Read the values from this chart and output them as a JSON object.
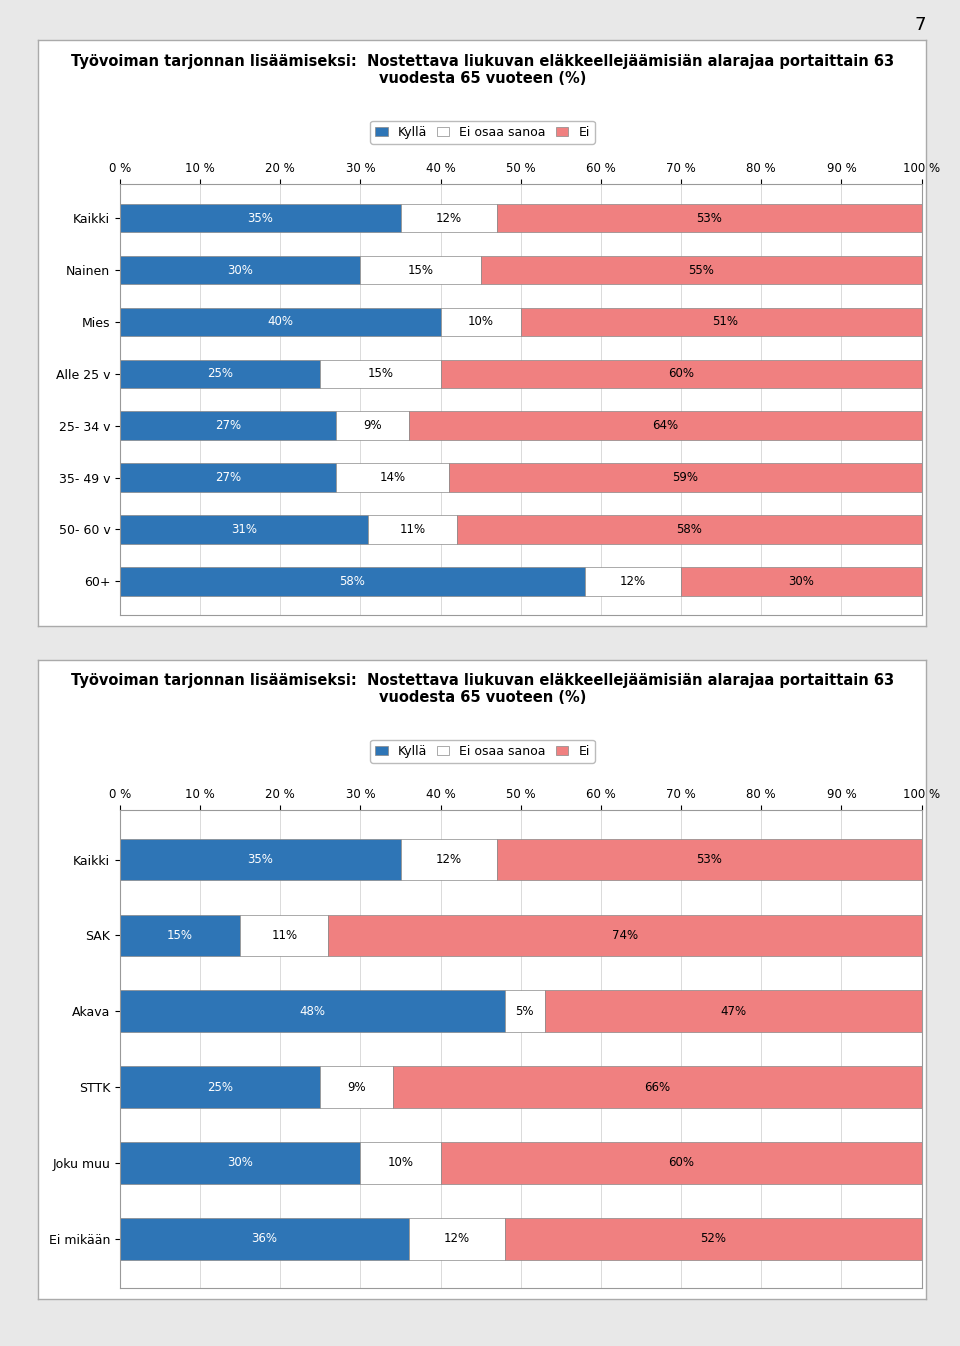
{
  "title_line1": "Työvoiman tarjonnan lisäämiseksi:  Nostettava liukuvan eläkkeellejäämisiän alarajaa portaittain 63",
  "title_line2": "vuodesta 65 vuoteen (%)",
  "legend_labels": [
    "Kyllä",
    "Ei osaa sanoa",
    "Ei"
  ],
  "colors": [
    "#2E75B6",
    "#FFFFFF",
    "#F08080"
  ],
  "chart1": {
    "categories": [
      "Kaikki",
      "Nainen",
      "Mies",
      "Alle 25 v",
      "25- 34 v",
      "35- 49 v",
      "50- 60 v",
      "60+"
    ],
    "kylla": [
      35,
      30,
      40,
      25,
      27,
      27,
      31,
      58
    ],
    "ei_osaa": [
      12,
      15,
      10,
      15,
      9,
      14,
      11,
      12
    ],
    "ei": [
      53,
      55,
      51,
      60,
      64,
      59,
      58,
      30
    ]
  },
  "chart2": {
    "categories": [
      "Kaikki",
      "SAK",
      "Akava",
      "STTK",
      "Joku muu",
      "Ei mikään"
    ],
    "kylla": [
      35,
      15,
      48,
      25,
      30,
      36
    ],
    "ei_osaa": [
      12,
      11,
      5,
      9,
      10,
      12
    ],
    "ei": [
      53,
      74,
      47,
      66,
      60,
      52
    ]
  },
  "xticks": [
    0,
    10,
    20,
    30,
    40,
    50,
    60,
    70,
    80,
    90,
    100
  ],
  "xlabels": [
    "0 %",
    "10 %",
    "20 %",
    "30 %",
    "40 %",
    "50 %",
    "60 %",
    "70 %",
    "80 %",
    "90 %",
    "100 %"
  ],
  "bar_edge_color": "#888888",
  "bar_height": 0.55,
  "page_number": "7",
  "page_bg": "#E8E8E8",
  "chart_bg": "#FFFFFF",
  "frame_color": "#999999",
  "grid_color": "#CCCCCC",
  "font_size_title": 10.5,
  "font_size_labels": 9,
  "font_size_bars": 8.5,
  "font_size_ticks": 8.5
}
